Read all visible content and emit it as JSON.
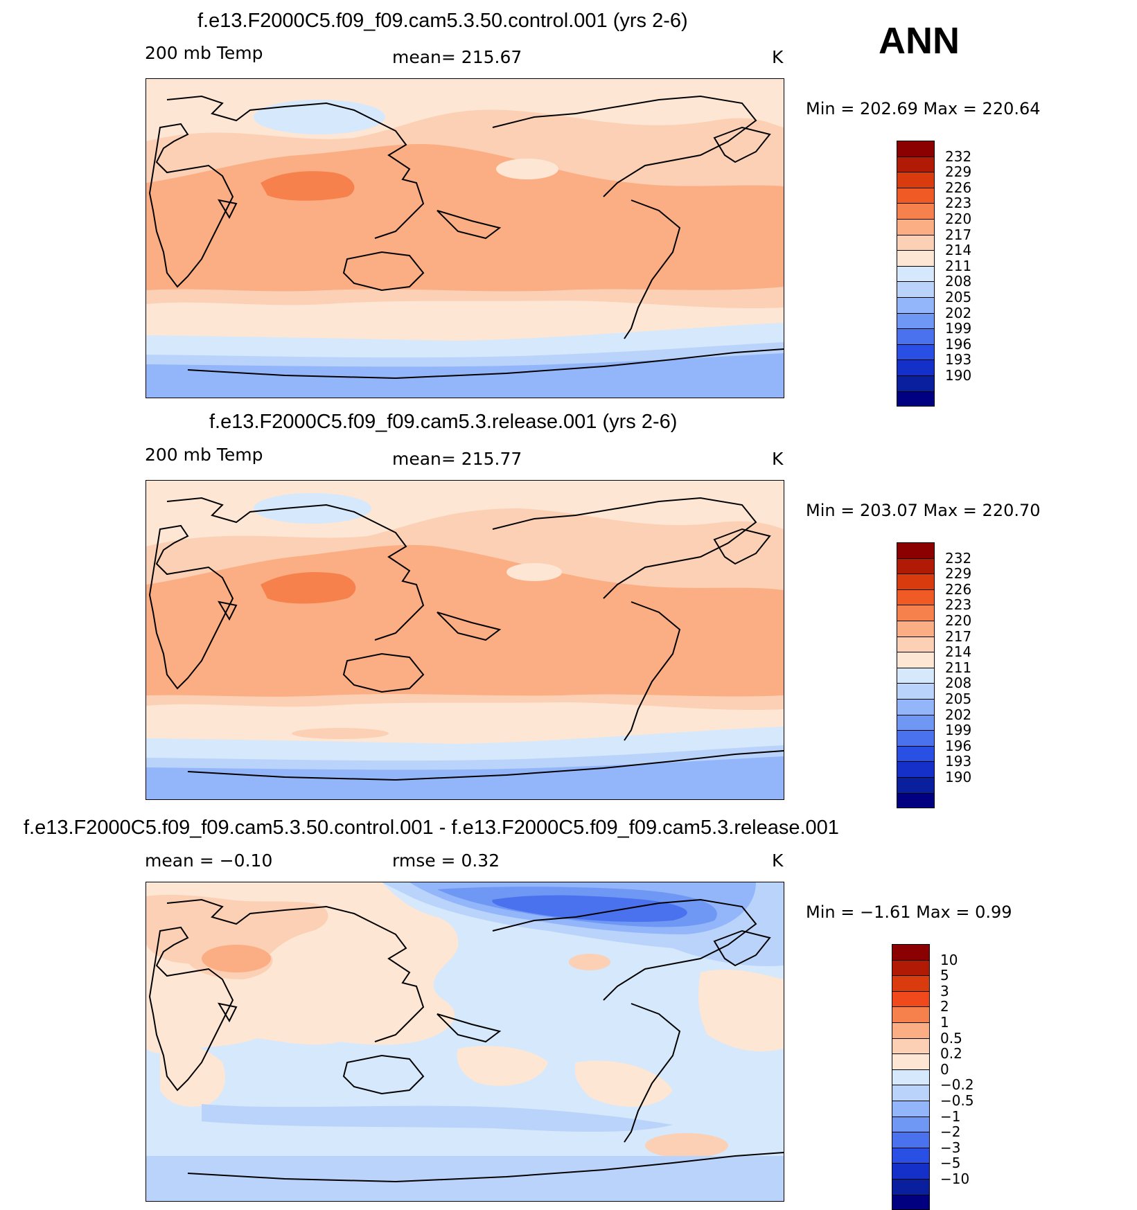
{
  "annotation": "ANN",
  "panels": [
    {
      "title": "f.e13.F2000C5.f09_f09.cam5.3.50.control.001 (yrs 2-6)",
      "left_label": "200 mb Temp",
      "center_label": "mean= 215.67",
      "right_label": "K",
      "minmax": "Min = 202.69 Max = 220.64",
      "colorbar_labels": [
        "232",
        "229",
        "226",
        "223",
        "220",
        "217",
        "214",
        "211",
        "208",
        "205",
        "202",
        "199",
        "196",
        "193",
        "190"
      ],
      "colorbar_colors": [
        "#8b0000",
        "#b11a04",
        "#d93a0e",
        "#f05a24",
        "#f7814c",
        "#fbad84",
        "#fcd0b4",
        "#fde6d4",
        "#d6e8fb",
        "#b9d3fb",
        "#93b6fa",
        "#6f97f4",
        "#4b72ee",
        "#2a4fe4",
        "#1430c8",
        "#0a1f9e",
        "#000080"
      ]
    },
    {
      "title": "f.e13.F2000C5.f09_f09.cam5.3.release.001 (yrs 2-6)",
      "left_label": "200 mb Temp",
      "center_label": "mean= 215.77",
      "right_label": "K",
      "minmax": "Min = 203.07 Max = 220.70",
      "colorbar_labels": [
        "232",
        "229",
        "226",
        "223",
        "220",
        "217",
        "214",
        "211",
        "208",
        "205",
        "202",
        "199",
        "196",
        "193",
        "190"
      ],
      "colorbar_colors": [
        "#8b0000",
        "#b11a04",
        "#d93a0e",
        "#f05a24",
        "#f7814c",
        "#fbad84",
        "#fcd0b4",
        "#fde6d4",
        "#d6e8fb",
        "#b9d3fb",
        "#93b6fa",
        "#6f97f4",
        "#4b72ee",
        "#2a4fe4",
        "#1430c8",
        "#0a1f9e",
        "#000080"
      ]
    },
    {
      "title": "f.e13.F2000C5.f09_f09.cam5.3.50.control.001 - f.e13.F2000C5.f09_f09.cam5.3.release.001",
      "left_label": "mean =   −0.10",
      "center_label": "rmse =    0.32",
      "right_label": "K",
      "minmax": "Min =   −1.61 Max =    0.99",
      "colorbar_labels": [
        "10",
        "5",
        "3",
        "2",
        "1",
        "0.5",
        "0.2",
        "0",
        "−0.2",
        "−0.5",
        "−1",
        "−2",
        "−3",
        "−5",
        "−10"
      ],
      "colorbar_colors": [
        "#8b0000",
        "#b11a04",
        "#d93a0e",
        "#f04a1c",
        "#f7814c",
        "#fbad84",
        "#fcd0b4",
        "#fde6d4",
        "#d6e8fb",
        "#b9d3fb",
        "#93b6fa",
        "#6f97f4",
        "#4b72ee",
        "#2a4fe4",
        "#1430c8",
        "#0a1f9e",
        "#000080"
      ]
    }
  ]
}
